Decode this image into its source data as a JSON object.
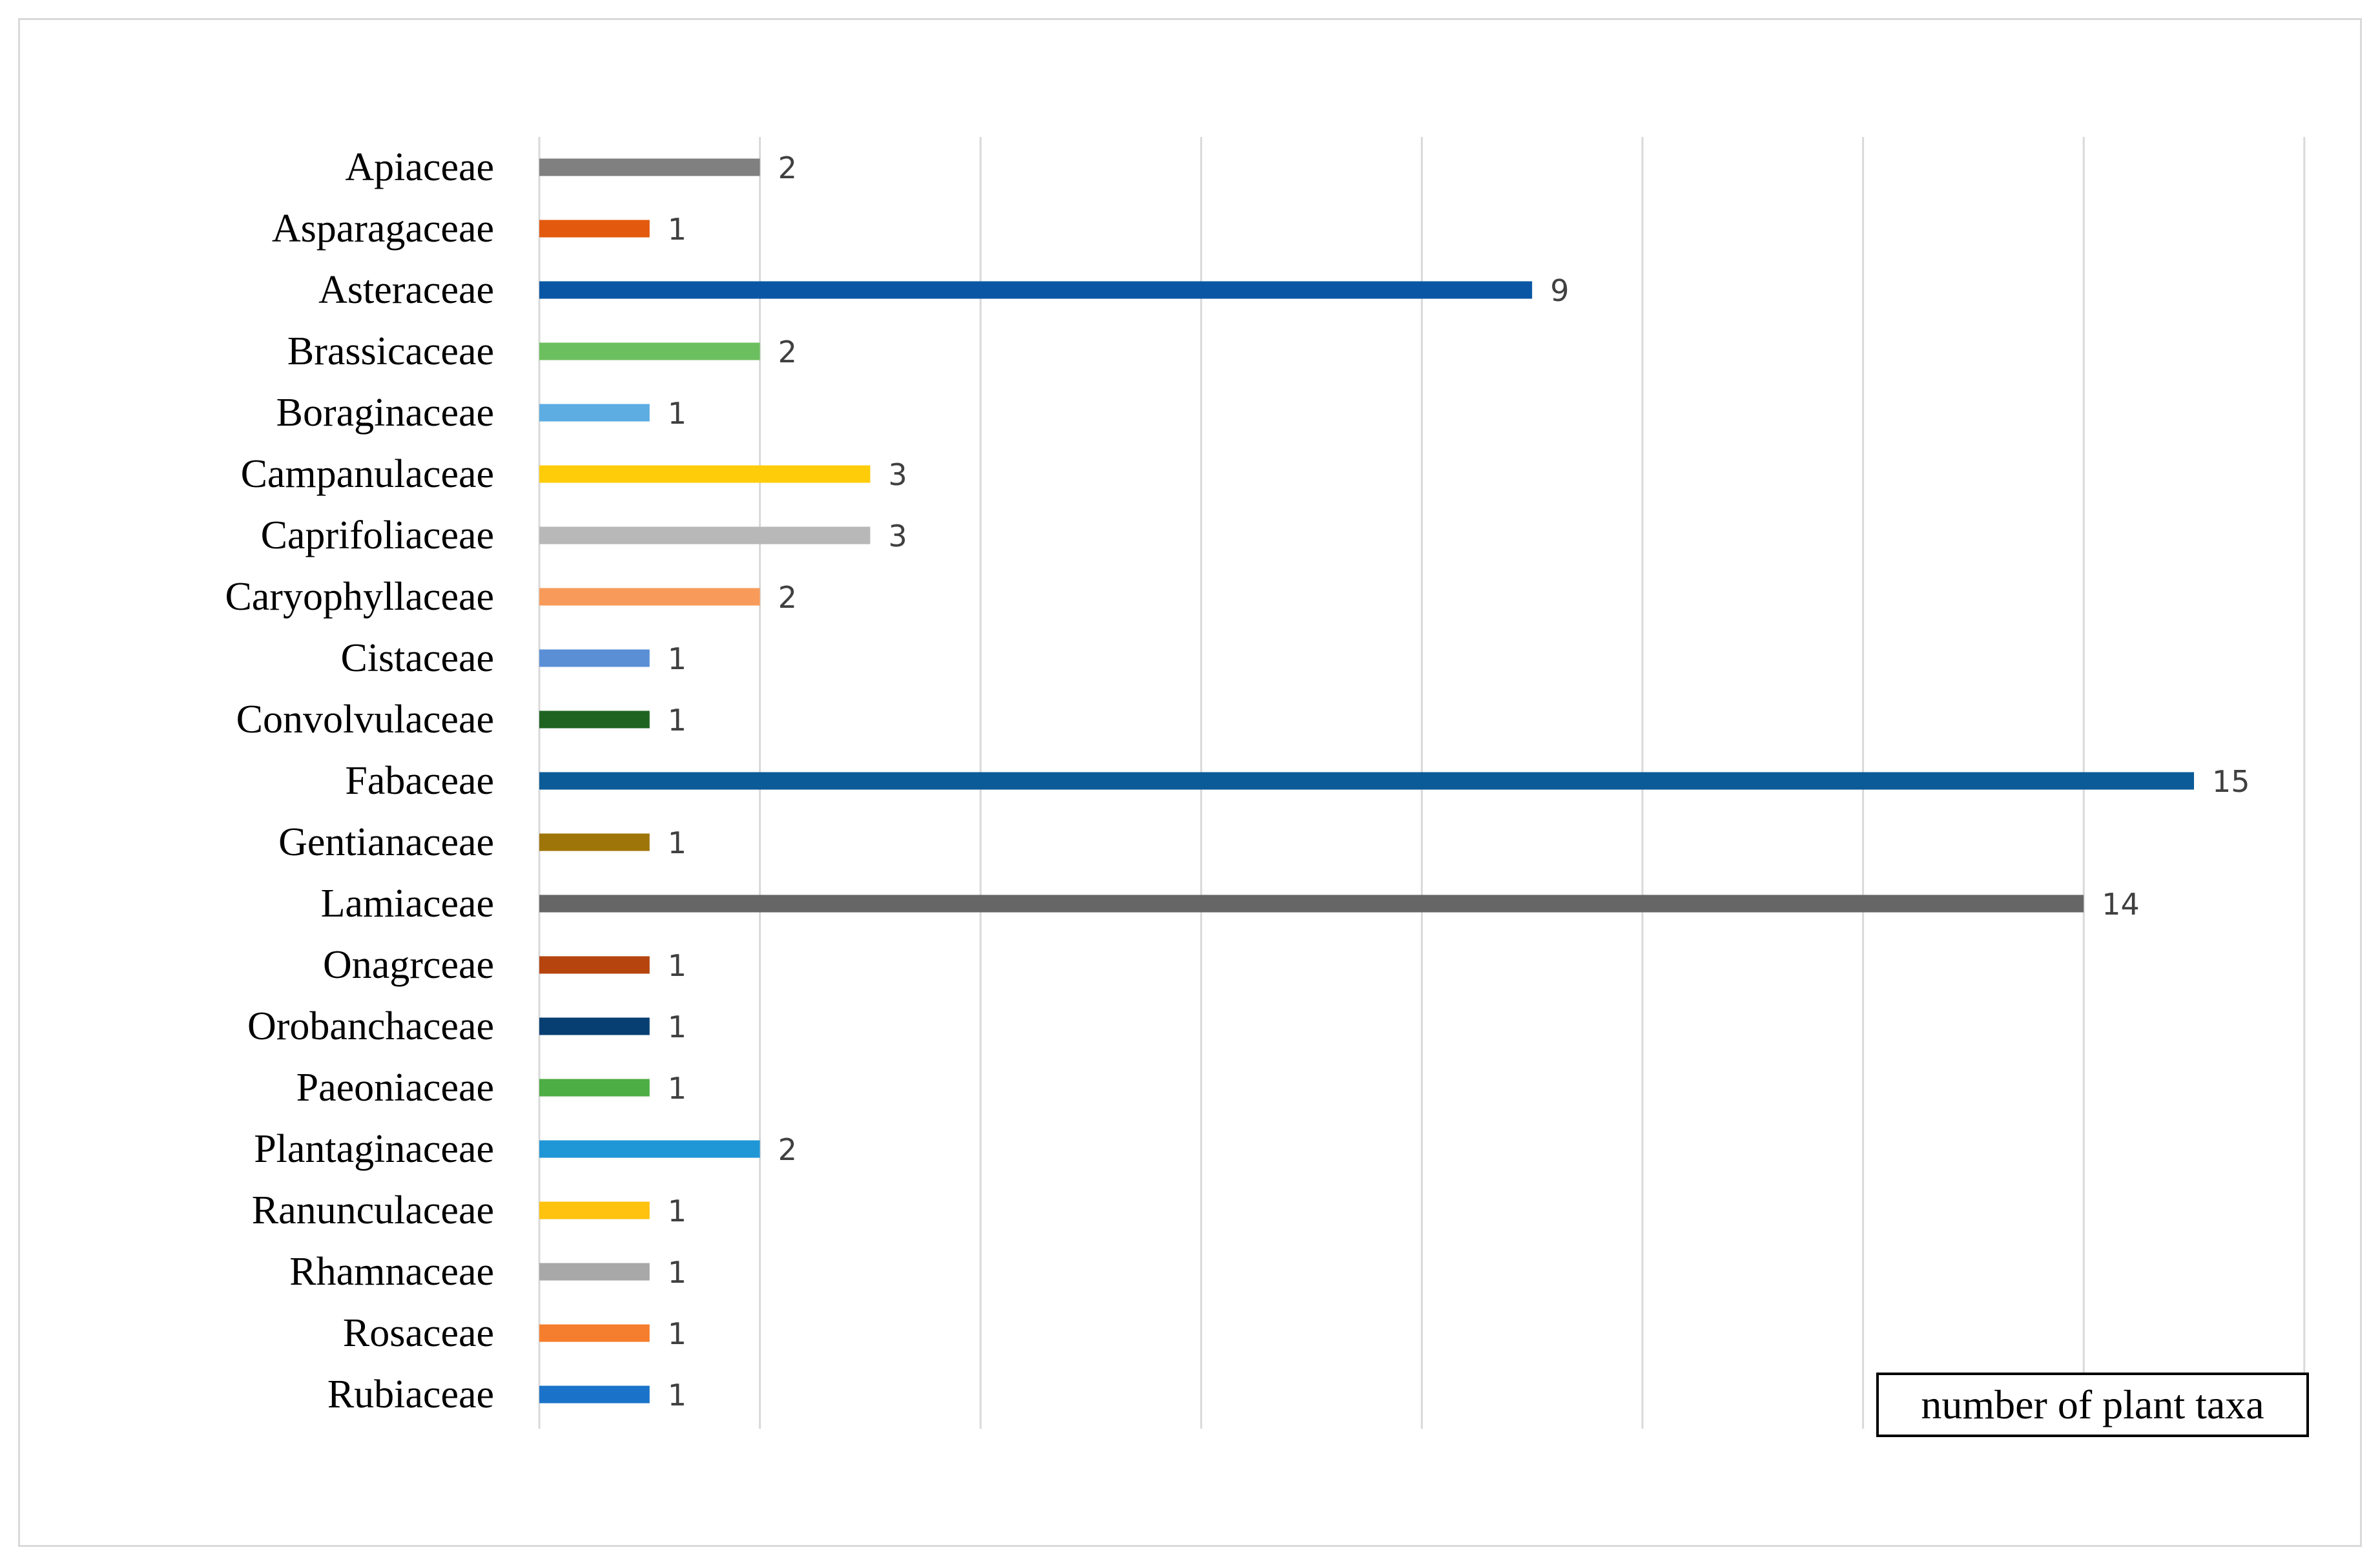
{
  "chart_data": {
    "type": "bar",
    "orientation": "horizontal",
    "categories": [
      "Apiaceae",
      "Asparagaceae",
      "Asteraceae",
      "Brassicaceae",
      "Boraginaceae",
      "Campanulaceae",
      "Caprifoliaceae",
      "Caryophyllaceae",
      "Cistaceae",
      "Convolvulaceae",
      "Fabaceae",
      "Gentianaceae",
      "Lamiaceae",
      "Onagrceae",
      "Orobanchaceae",
      "Paeoniaceae",
      "Plantaginaceae",
      "Ranunculaceae",
      "Rhamnaceae",
      "Rosaceae",
      "Rubiaceae"
    ],
    "values": [
      2,
      1,
      9,
      2,
      1,
      3,
      3,
      2,
      1,
      1,
      15,
      1,
      14,
      1,
      1,
      1,
      2,
      1,
      1,
      1,
      1
    ],
    "colors": [
      "#808080",
      "#e35a0e",
      "#0a56a4",
      "#6cbf5e",
      "#5dade2",
      "#ffcc0a",
      "#b8b8b8",
      "#f79a5a",
      "#5a8fd6",
      "#1f6320",
      "#0a5b97",
      "#9e7508",
      "#666666",
      "#b5440f",
      "#083f73",
      "#4cae44",
      "#1f97d6",
      "#ffc20e",
      "#a8a8a8",
      "#f57e2e",
      "#1a73c8"
    ],
    "xlim": [
      0,
      16
    ],
    "grid": true,
    "data_labels": true,
    "axis_title": "number of plant taxa"
  }
}
